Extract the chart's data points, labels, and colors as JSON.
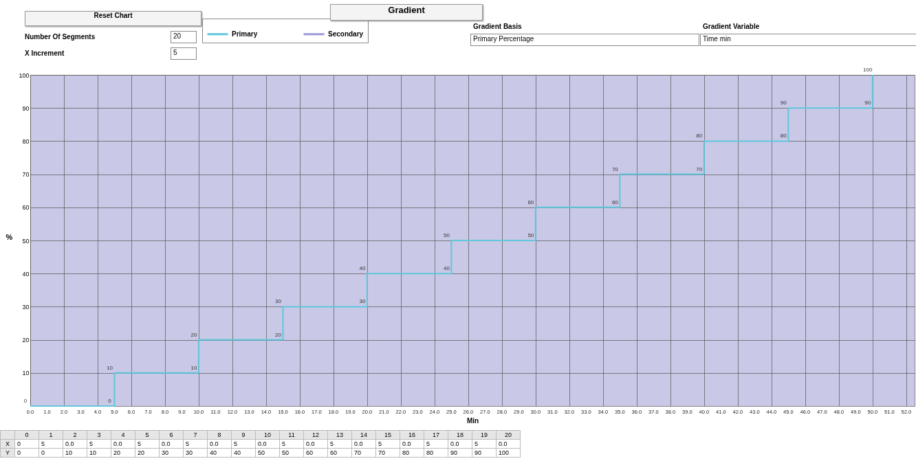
{
  "chart_data": {
    "type": "line",
    "xlabel": "Min",
    "ylabel": "%",
    "x": [
      0,
      5,
      5,
      10,
      10,
      15,
      15,
      20,
      20,
      25,
      25,
      30,
      30,
      35,
      35,
      40,
      40,
      45,
      45,
      50,
      50
    ],
    "series": [
      {
        "name": "Primary",
        "color": "#5fc8dc",
        "values": [
          0,
          0,
          10,
          10,
          20,
          20,
          30,
          30,
          40,
          40,
          50,
          50,
          60,
          60,
          70,
          70,
          80,
          80,
          90,
          90,
          100
        ]
      },
      {
        "name": "Secondary",
        "color": "#9a9ad6",
        "values": [
          null,
          null,
          null,
          null,
          null,
          null,
          null,
          null,
          null,
          null,
          null,
          null,
          null,
          null,
          null,
          null,
          null,
          null,
          null,
          null,
          null
        ]
      }
    ],
    "xlim": [
      0,
      52.5
    ],
    "xticks": [
      {
        "value": 0,
        "label": "0.0"
      },
      {
        "value": 1,
        "label": "1.0"
      },
      {
        "value": 2,
        "label": "2.0"
      },
      {
        "value": 3,
        "label": "3.0"
      },
      {
        "value": 4,
        "label": "4.0"
      },
      {
        "value": 5,
        "label": "5.0"
      },
      {
        "value": 6,
        "label": "6.0"
      },
      {
        "value": 7,
        "label": "7.0"
      },
      {
        "value": 8,
        "label": "8.0"
      },
      {
        "value": 9,
        "label": "9.0"
      },
      {
        "value": 10,
        "label": "10.0"
      },
      {
        "value": 11,
        "label": "11.0"
      },
      {
        "value": 12,
        "label": "12.0"
      },
      {
        "value": 13,
        "label": "13.0"
      },
      {
        "value": 14,
        "label": "14.0"
      },
      {
        "value": 15,
        "label": "15.0"
      },
      {
        "value": 16,
        "label": "16.0"
      },
      {
        "value": 17,
        "label": "17.0"
      },
      {
        "value": 18,
        "label": "18.0"
      },
      {
        "value": 19,
        "label": "19.0"
      },
      {
        "value": 20,
        "label": "20.0"
      },
      {
        "value": 21,
        "label": "21.0"
      },
      {
        "value": 22,
        "label": "22.0"
      },
      {
        "value": 23,
        "label": "23.0"
      },
      {
        "value": 24,
        "label": "24.0"
      },
      {
        "value": 25,
        "label": "25.0"
      },
      {
        "value": 26,
        "label": "26.0"
      },
      {
        "value": 27,
        "label": "27.0"
      },
      {
        "value": 28,
        "label": "28.0"
      },
      {
        "value": 29,
        "label": "29.0"
      },
      {
        "value": 30,
        "label": "30.0"
      },
      {
        "value": 31,
        "label": "31.0"
      },
      {
        "value": 32,
        "label": "32.0"
      },
      {
        "value": 33,
        "label": "33.0"
      },
      {
        "value": 34,
        "label": "34.0"
      },
      {
        "value": 35,
        "label": "35.0"
      },
      {
        "value": 36,
        "label": "36.0"
      },
      {
        "value": 37,
        "label": "37.0"
      },
      {
        "value": 38,
        "label": "38.0"
      },
      {
        "value": 39,
        "label": "39.0"
      },
      {
        "value": 40,
        "label": "40.0"
      },
      {
        "value": 41,
        "label": "41.0"
      },
      {
        "value": 42,
        "label": "42.0"
      },
      {
        "value": 43,
        "label": "43.0"
      },
      {
        "value": 44,
        "label": "44.0"
      },
      {
        "value": 45,
        "label": "45.0"
      },
      {
        "value": 46,
        "label": "46.0"
      },
      {
        "value": 47,
        "label": "47.0"
      },
      {
        "value": 48,
        "label": "48.0"
      },
      {
        "value": 49,
        "label": "49.0"
      },
      {
        "value": 50,
        "label": "50.0"
      },
      {
        "value": 51,
        "label": "51.0"
      },
      {
        "value": 52,
        "label": "52.0"
      }
    ],
    "ylim": [
      0,
      100
    ],
    "yticks": [
      10,
      20,
      30,
      40,
      50,
      60,
      70,
      80,
      90,
      100
    ],
    "grid": true,
    "legend": "top",
    "data_labels": true,
    "annotations": [
      "Reset Chart",
      "Number Of Segments",
      "20",
      "X Increment",
      "5",
      "Gradient",
      "Gradient Basis",
      "Primary Percentage",
      "Gradient Variable",
      "Time min",
      "0 1 2 3 4 5 6 7 8 9 10 11 12 13 14 15 16 17 18 19 20",
      "X 0 5 0.0 5 0.0 5 0.0 5 0.0 5 0.0 5 0.0 5 0.0 5 0.0 5 0.0 5 0.0",
      "Y 0 0 10 10 20 20 30 30 40 40 50 50 60 60 70 70 80 80 90 90 100"
    ]
  }
}
